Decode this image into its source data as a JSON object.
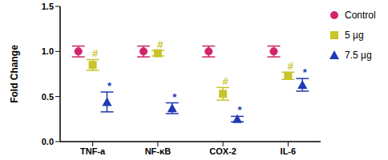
{
  "chart_data": {
    "type": "scatter",
    "y_label": "Fold Change",
    "categories": [
      "TNF-a",
      "NF-κB",
      "COX-2",
      "IL-6"
    ],
    "ylim": [
      0,
      1.5
    ],
    "yticks": [
      {
        "value": 0,
        "label": "0.0"
      },
      0.5,
      {
        "value": 1,
        "label": "1.0"
      },
      1.5
    ],
    "legend": "right",
    "grid": false,
    "series": [
      {
        "name": "Control",
        "color": "#d0246b",
        "marker": "circle",
        "values": [
          1.0,
          1.0,
          1.0,
          1.0
        ],
        "errors": [
          0.06,
          0.06,
          0.06,
          0.06
        ]
      },
      {
        "name": "5 µg",
        "color": "#c8c42a",
        "marker": "square",
        "values": [
          0.85,
          0.98,
          0.53,
          0.73
        ],
        "errors": [
          0.06,
          0.03,
          0.07,
          0.04
        ],
        "annotations": [
          "#",
          "#",
          "#",
          "#"
        ]
      },
      {
        "name": "7.5 µg",
        "color": "#2139b5",
        "marker": "triangle",
        "values": [
          0.44,
          0.37,
          0.25,
          0.63
        ],
        "errors": [
          0.11,
          0.06,
          0.03,
          0.07
        ],
        "annotations": [
          "*",
          "*",
          "*",
          "*"
        ]
      }
    ]
  }
}
